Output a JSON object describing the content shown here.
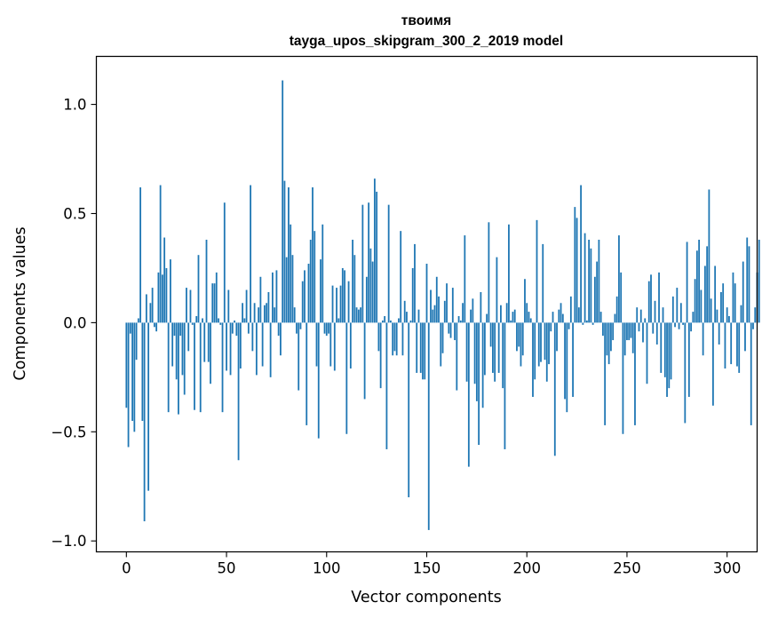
{
  "chart_data": {
    "type": "bar",
    "title": "твоимя",
    "subtitle": "tayga_upos_skipgram_300_2_2019 model",
    "xlabel": "Vector components",
    "ylabel": "Components values",
    "xlim": [
      -15,
      315
    ],
    "ylim": [
      -1.05,
      1.22
    ],
    "xticks": [
      0,
      50,
      100,
      150,
      200,
      250,
      300
    ],
    "yticks": [
      -1.0,
      -0.5,
      0.0,
      0.5,
      1.0
    ],
    "xtick_labels": [
      "0",
      "50",
      "100",
      "150",
      "200",
      "250",
      "300"
    ],
    "ytick_labels": [
      "−1.0",
      "−0.5",
      "0.0",
      "0.5",
      "1.0"
    ],
    "color": "#1f77b4",
    "grid": false,
    "values": [
      -0.39,
      -0.57,
      -0.05,
      -0.45,
      -0.5,
      -0.17,
      0.02,
      0.62,
      -0.45,
      -0.91,
      0.13,
      -0.77,
      0.09,
      0.16,
      -0.02,
      -0.04,
      0.23,
      0.63,
      0.22,
      0.39,
      0.25,
      -0.41,
      0.29,
      -0.2,
      -0.06,
      -0.26,
      -0.42,
      -0.06,
      -0.24,
      -0.33,
      0.16,
      -0.13,
      0.15,
      -0.01,
      -0.4,
      0.03,
      0.31,
      -0.41,
      0.02,
      -0.18,
      0.38,
      -0.18,
      -0.28,
      0.18,
      0.18,
      0.23,
      0.02,
      -0.01,
      -0.41,
      0.55,
      -0.22,
      0.15,
      -0.24,
      -0.05,
      0.01,
      -0.06,
      -0.63,
      -0.21,
      0.09,
      0.02,
      0.15,
      -0.05,
      0.63,
      -0.13,
      0.09,
      -0.24,
      0.07,
      0.21,
      -0.2,
      0.08,
      0.09,
      0.14,
      -0.25,
      0.23,
      0.07,
      0.24,
      -0.06,
      -0.15,
      1.11,
      0.65,
      0.3,
      0.62,
      0.45,
      0.31,
      0.07,
      -0.05,
      -0.31,
      -0.03,
      0.19,
      0.24,
      -0.47,
      0.27,
      0.38,
      0.62,
      0.42,
      -0.2,
      -0.53,
      0.29,
      0.45,
      -0.05,
      -0.06,
      -0.05,
      -0.2,
      0.17,
      -0.22,
      0.16,
      0.02,
      0.17,
      0.25,
      0.24,
      -0.51,
      0.19,
      -0.21,
      0.38,
      0.31,
      0.07,
      0.06,
      0.07,
      0.54,
      -0.35,
      0.21,
      0.55,
      0.34,
      0.28,
      0.66,
      0.6,
      -0.13,
      -0.3,
      0.01,
      0.03,
      -0.58,
      0.54,
      0.01,
      -0.15,
      -0.13,
      -0.15,
      0.02,
      0.42,
      -0.15,
      0.1,
      0.05,
      -0.8,
      0.01,
      0.25,
      0.36,
      -0.23,
      0.06,
      -0.23,
      -0.26,
      -0.26,
      0.27,
      -0.95,
      0.15,
      0.06,
      0.08,
      0.21,
      0.12,
      -0.2,
      -0.14,
      0.1,
      0.18,
      -0.05,
      -0.07,
      0.16,
      -0.08,
      -0.31,
      0.03,
      0.01,
      0.09,
      0.4,
      -0.27,
      -0.66,
      0.06,
      0.11,
      -0.28,
      -0.36,
      -0.56,
      0.14,
      -0.39,
      -0.24,
      0.04,
      0.46,
      -0.11,
      -0.23,
      -0.27,
      0.3,
      -0.23,
      0.08,
      -0.3,
      -0.58,
      0.09,
      0.45,
      0.01,
      0.05,
      0.06,
      -0.13,
      -0.11,
      -0.2,
      -0.15,
      0.2,
      0.09,
      0.05,
      0.02,
      -0.34,
      -0.26,
      0.47,
      -0.2,
      -0.18,
      0.36,
      -0.17,
      -0.27,
      -0.19,
      -0.04,
      0.05,
      -0.61,
      -0.13,
      0.06,
      0.09,
      0.04,
      -0.35,
      -0.41,
      -0.03,
      0.12,
      -0.34,
      0.53,
      0.48,
      0.07,
      0.63,
      -0.01,
      0.41,
      0.01,
      0.38,
      0.34,
      -0.01,
      0.21,
      0.28,
      0.38,
      0.05,
      -0.06,
      -0.47,
      -0.15,
      -0.19,
      -0.13,
      -0.08,
      0.04,
      0.12,
      0.4,
      0.23,
      -0.51,
      -0.15,
      -0.08,
      -0.08,
      -0.07,
      -0.14,
      -0.47,
      0.07,
      -0.04,
      0.06,
      -0.09,
      0.02,
      -0.28,
      0.19,
      0.22,
      -0.05,
      0.1,
      -0.1,
      0.23,
      -0.23,
      0.07,
      -0.25,
      -0.34,
      -0.3,
      -0.26,
      0.12,
      -0.02,
      0.16,
      -0.03,
      0.09,
      -0.01,
      -0.46,
      0.37,
      -0.34,
      -0.04,
      0.05,
      0.2,
      0.33,
      0.38,
      0.15,
      -0.15,
      0.26,
      0.35,
      0.61,
      0.11,
      -0.38,
      0.26,
      0.06,
      -0.1,
      0.14,
      0.18,
      -0.21,
      0.07,
      0.03,
      -0.19,
      0.23,
      0.18,
      -0.2,
      -0.23,
      0.08,
      0.28,
      -0.13,
      0.39,
      0.35,
      -0.47,
      -0.03,
      0.07,
      0.23,
      0.38
    ]
  }
}
